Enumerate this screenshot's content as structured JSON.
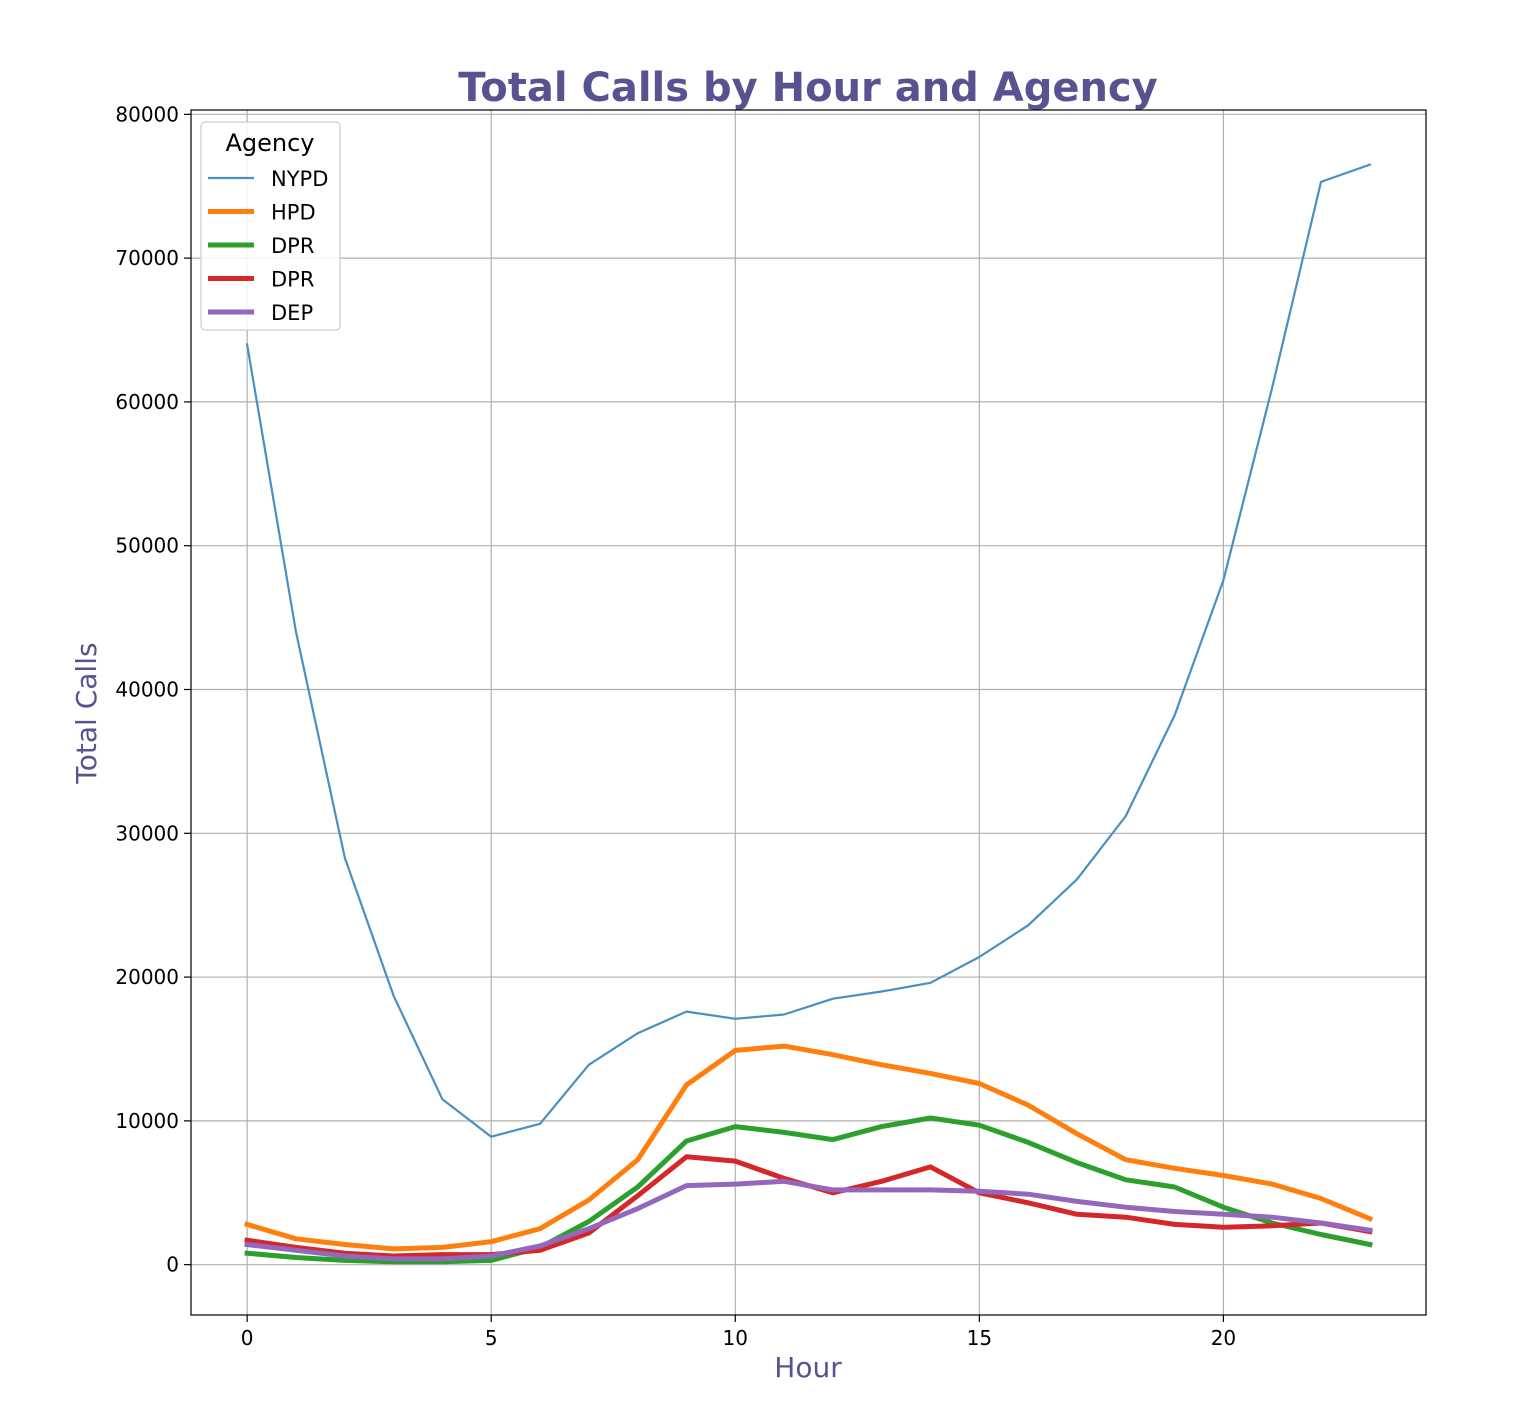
{
  "chart_data": {
    "type": "line",
    "title": "Total Calls by Hour and Agency",
    "xlabel": "Hour",
    "ylabel": "Total Calls",
    "xlim": [
      -1.15,
      24.15
    ],
    "ylim": [
      -3500,
      80300
    ],
    "xticks": [
      0,
      5,
      10,
      15,
      20
    ],
    "yticks": [
      0,
      10000,
      20000,
      30000,
      40000,
      50000,
      60000,
      70000,
      80000
    ],
    "grid": true,
    "legend": {
      "title": "Agency",
      "placement": "top-left"
    },
    "x": [
      0,
      1,
      2,
      3,
      4,
      5,
      6,
      7,
      8,
      9,
      10,
      11,
      12,
      13,
      14,
      15,
      16,
      17,
      18,
      19,
      20,
      21,
      22,
      23
    ],
    "series": [
      {
        "name": "NYPD",
        "color": "#4a8fc2",
        "width": 2.2,
        "values": [
          64000,
          44000,
          28300,
          18700,
          11500,
          8900,
          9800,
          13900,
          16100,
          17600,
          17100,
          17400,
          18500,
          19000,
          19600,
          21400,
          23600,
          26800,
          31200,
          38200,
          47600,
          61000,
          75300,
          76500
        ]
      },
      {
        "name": "HPD",
        "color": "#ff7f0e",
        "width": 5,
        "values": [
          2800,
          1800,
          1400,
          1100,
          1200,
          1600,
          2500,
          4500,
          7300,
          12500,
          14900,
          15200,
          14600,
          13900,
          13300,
          12600,
          11100,
          9100,
          7300,
          6700,
          6200,
          5600,
          4600,
          3200
        ]
      },
      {
        "name": "DPR",
        "color": "#2ca02c",
        "width": 5,
        "values": [
          800,
          500,
          300,
          200,
          200,
          300,
          1200,
          3000,
          5400,
          8600,
          9600,
          9200,
          8700,
          9600,
          10200,
          9700,
          8500,
          7100,
          5900,
          5400,
          4000,
          2900,
          2100,
          1400
        ]
      },
      {
        "name": "DPR",
        "color": "#d62728",
        "width": 5,
        "values": [
          1700,
          1200,
          800,
          600,
          700,
          700,
          1000,
          2200,
          4800,
          7500,
          7200,
          6000,
          5000,
          5800,
          6800,
          5000,
          4300,
          3500,
          3300,
          2800,
          2600,
          2700,
          2900,
          2300
        ]
      },
      {
        "name": "DEP",
        "color": "#9467bd",
        "width": 5,
        "values": [
          1400,
          1000,
          600,
          400,
          400,
          600,
          1300,
          2500,
          3900,
          5500,
          5600,
          5800,
          5200,
          5200,
          5200,
          5100,
          4900,
          4400,
          4000,
          3700,
          3500,
          3300,
          2900,
          2400
        ]
      }
    ]
  }
}
